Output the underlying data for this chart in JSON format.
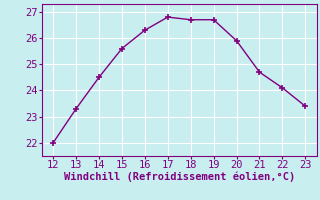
{
  "x": [
    12,
    13,
    14,
    15,
    16,
    17,
    18,
    19,
    20,
    21,
    22,
    23
  ],
  "y": [
    22.0,
    23.3,
    24.5,
    25.6,
    26.3,
    26.8,
    26.7,
    26.7,
    25.9,
    24.7,
    24.1,
    23.4
  ],
  "line_color": "#800080",
  "marker": "+",
  "marker_color": "#800080",
  "bg_color": "#c8eef0",
  "grid_color": "#ffffff",
  "xlabel": "Windchill (Refroidissement éolien,°C)",
  "xlabel_color": "#800080",
  "tick_color": "#800080",
  "spine_color": "#800080",
  "xlim": [
    11.5,
    23.5
  ],
  "ylim": [
    21.5,
    27.3
  ],
  "xticks": [
    12,
    13,
    14,
    15,
    16,
    17,
    18,
    19,
    20,
    21,
    22,
    23
  ],
  "yticks": [
    22,
    23,
    24,
    25,
    26,
    27
  ],
  "linewidth": 1.0,
  "markersize": 4,
  "tick_fontsize": 7.5,
  "xlabel_fontsize": 7.5
}
